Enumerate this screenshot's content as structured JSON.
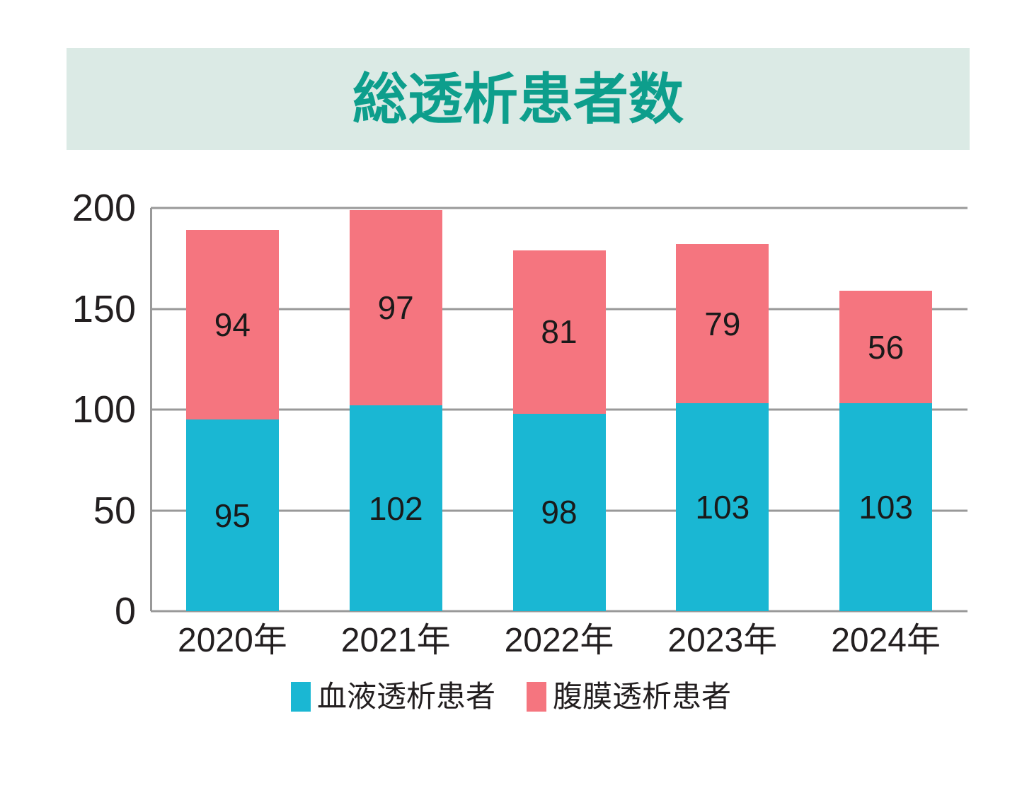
{
  "title": "総透析患者数",
  "colors": {
    "title_text": "#0d9e8c",
    "banner_background": "#dbeae5",
    "hemodialysis_bar": "#1ab7d3",
    "peritoneal_bar": "#f5757f",
    "gridline": "#999999",
    "label_text": "#231f20"
  },
  "chart_data": {
    "type": "bar",
    "stacked": true,
    "title": "総透析患者数",
    "categories": [
      "2020年",
      "2021年",
      "2022年",
      "2023年",
      "2024年"
    ],
    "series": [
      {
        "key": "hemodialysis",
        "name": "血液透析患者",
        "color": "#1ab7d3",
        "values": [
          95,
          102,
          98,
          103,
          103
        ]
      },
      {
        "key": "peritoneal",
        "name": "腹膜透析患者",
        "color": "#f5757f",
        "values": [
          94,
          97,
          81,
          79,
          56
        ]
      }
    ],
    "totals": [
      189,
      199,
      179,
      182,
      159
    ],
    "xlabel": "",
    "ylabel": "",
    "ylim": [
      0,
      200
    ],
    "yticks": [
      0,
      50,
      100,
      150,
      200
    ],
    "grid": true,
    "legend_position": "bottom",
    "value_labels": "inside-center"
  }
}
